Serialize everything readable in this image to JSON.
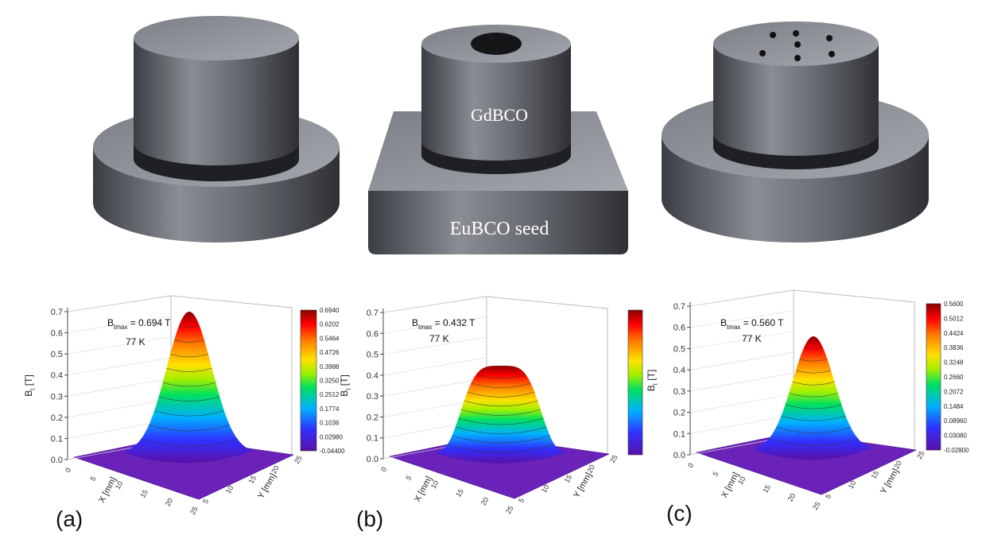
{
  "photos": {
    "labels": [
      "GdBCO",
      "EuBCO seed"
    ]
  },
  "panels": [
    {
      "label": "(a)",
      "annotation": {
        "symbol": "B",
        "subscript": "tmax",
        "text": " = 0.694 T"
      },
      "temperature": "77 K",
      "z_title": {
        "symbol": "B",
        "subscript": "t",
        "unit": " [T]"
      },
      "z_ticks": [
        "0.0",
        "0.1",
        "0.2",
        "0.3",
        "0.4",
        "0.5",
        "0.6",
        "0.7"
      ],
      "x_title": "X [mm]",
      "y_title": "Y [mm]",
      "x_ticks": [
        "0",
        "5",
        "10",
        "15",
        "20",
        "25"
      ],
      "y_ticks": [
        "25",
        "20",
        "15",
        "10",
        "5"
      ],
      "colorbar": [
        "0.6940",
        "0.6202",
        "0.5464",
        "0.4726",
        "0.3988",
        "0.3250",
        "0.2512",
        "0.1774",
        "0.1036",
        "0.02980",
        "-0.04400"
      ]
    },
    {
      "label": "(b)",
      "annotation": {
        "symbol": "B",
        "subscript": "tmax",
        "text": " = 0.432 T"
      },
      "temperature": "77 K",
      "z_title": {
        "symbol": "B",
        "subscript": "t",
        "unit": " [T]"
      },
      "z_ticks": [
        "0.0",
        "0.1",
        "0.2",
        "0.3",
        "0.4",
        "0.5",
        "0.6",
        "0.7"
      ],
      "x_title": "X [mm]",
      "y_title": "Y [mm]",
      "x_ticks": [
        "0",
        "5",
        "10",
        "15",
        "20",
        "25"
      ],
      "y_ticks": [
        "25",
        "20",
        "15",
        "10",
        "5"
      ],
      "colorbar": []
    },
    {
      "label": "(c)",
      "annotation": {
        "symbol": "B",
        "subscript": "tmax",
        "text": " = 0.560 T"
      },
      "temperature": "77 K",
      "z_title": {
        "symbol": "B",
        "subscript": "t",
        "unit": " [T]"
      },
      "z_ticks": [
        "0.0",
        "0.1",
        "0.2",
        "0.3",
        "0.4",
        "0.5",
        "0.6",
        "0.7"
      ],
      "x_title": "X [mm]",
      "y_title": "Y [mm]",
      "x_ticks": [
        "0",
        "5",
        "10",
        "15",
        "20",
        "25"
      ],
      "y_ticks": [
        "25",
        "20",
        "15",
        "10",
        "5"
      ],
      "colorbar": [
        "0.5600",
        "0.5012",
        "0.4424",
        "0.3836",
        "0.3248",
        "0.2660",
        "0.2072",
        "0.1484",
        "0.08960",
        "0.03080",
        "-0.02800"
      ]
    }
  ]
}
